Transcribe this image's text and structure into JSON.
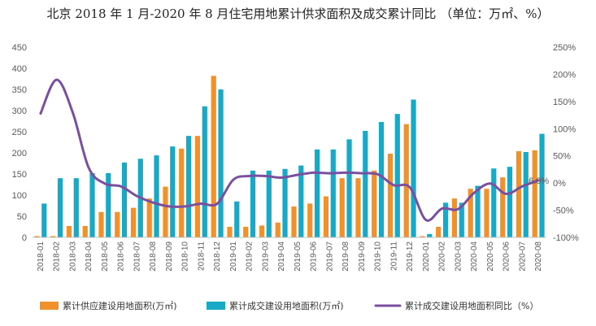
{
  "chart_data": {
    "type": "bar",
    "title": "北京 2018 年 1 月-2020 年 8 月住宅用地累计供求面积及成交累计同比 （单位：万㎡、%）",
    "categories": [
      "2018-01",
      "2018-02",
      "2018-03",
      "2018-04",
      "2018-05",
      "2018-06",
      "2018-07",
      "2018-08",
      "2018-09",
      "2018-10",
      "2018-11",
      "2018-12",
      "2019-01",
      "2019-02",
      "2019-03",
      "2019-04",
      "2019-05",
      "2019-06",
      "2019-07",
      "2019-08",
      "2019-09",
      "2019-10",
      "2019-11",
      "2019-12",
      "2020-01",
      "2020-02",
      "2020-03",
      "2020-04",
      "2020-05",
      "2020-06",
      "2020-07",
      "2020-08"
    ],
    "left_axis": {
      "min": 0,
      "max": 450,
      "ticks": [
        "0",
        "50",
        "100",
        "150",
        "200",
        "250",
        "300",
        "350",
        "400",
        "450"
      ]
    },
    "right_axis": {
      "min": -100,
      "max": 250,
      "ticks": [
        "-100%",
        "-50%",
        "0%",
        "50%",
        "100%",
        "150%",
        "200%",
        "250%"
      ]
    },
    "series": [
      {
        "name": "累计供应建设用地面积(万㎡)",
        "type": "bar",
        "axis": "left",
        "color": "#f0912a",
        "values": [
          3,
          3,
          27,
          27,
          60,
          60,
          70,
          92,
          120,
          210,
          240,
          382,
          25,
          25,
          28,
          35,
          73,
          80,
          97,
          140,
          140,
          158,
          198,
          268,
          3,
          25,
          92,
          115,
          115,
          142,
          204,
          206
        ]
      },
      {
        "name": "累计成交建设用地面积(万㎡)",
        "type": "bar",
        "axis": "left",
        "color": "#17a9c5",
        "values": [
          80,
          140,
          140,
          152,
          152,
          177,
          186,
          194,
          215,
          240,
          310,
          350,
          85,
          158,
          158,
          162,
          170,
          208,
          208,
          232,
          252,
          273,
          292,
          326,
          8,
          82,
          82,
          122,
          163,
          167,
          202,
          245
        ]
      },
      {
        "name": "累计成交建设用地面积同比（%）",
        "type": "line",
        "axis": "right",
        "color": "#7a4fa0",
        "values": [
          128,
          190,
          130,
          28,
          -1,
          -6,
          -24,
          -36,
          -43,
          -43,
          -38,
          -38,
          6,
          13,
          13,
          10,
          15,
          19,
          18,
          19,
          18,
          16,
          -4,
          -8,
          -68,
          -47,
          -48,
          -18,
          -1,
          -20,
          -6,
          5
        ]
      }
    ],
    "annotations": [
      "6.0%"
    ],
    "grid": false,
    "legend_position": "bottom"
  }
}
